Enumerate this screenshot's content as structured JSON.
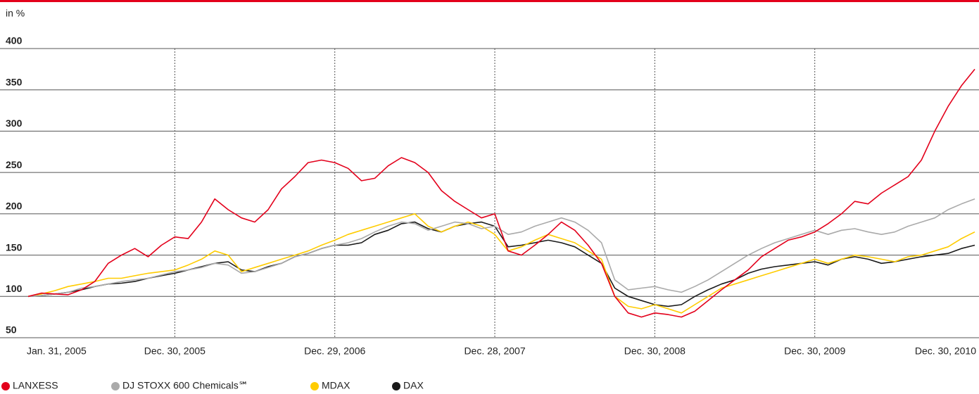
{
  "chart_data": {
    "type": "line",
    "y_label": "in %",
    "x": [
      0,
      1,
      2,
      3,
      4,
      5,
      6,
      7,
      8,
      9,
      10,
      11,
      12,
      13,
      14,
      15,
      16,
      17,
      18,
      19,
      20,
      21,
      22,
      23,
      24,
      25,
      26,
      27,
      28,
      29,
      30,
      31,
      32,
      33,
      34,
      35,
      36,
      37,
      38,
      39,
      40,
      41,
      42,
      43,
      44,
      45,
      46,
      47,
      48,
      49,
      50,
      51,
      52,
      53,
      54,
      55,
      56,
      57,
      58,
      59,
      60,
      61,
      62,
      63,
      64,
      65,
      66,
      67,
      68,
      69,
      70,
      71
    ],
    "xlim": [
      0,
      71
    ],
    "xticks": [
      {
        "value": 0,
        "label": "Jan. 31, 2005"
      },
      {
        "value": 11,
        "label": "Dec. 30, 2005"
      },
      {
        "value": 23,
        "label": "Dec. 29, 2006"
      },
      {
        "value": 35,
        "label": "Dec. 28, 2007"
      },
      {
        "value": 47,
        "label": "Dec. 30, 2008"
      },
      {
        "value": 59,
        "label": "Dec. 30, 2009"
      },
      {
        "value": 71,
        "label": "Dec. 30, 2010"
      }
    ],
    "ylim": [
      50,
      400
    ],
    "yticks": [
      50,
      100,
      150,
      200,
      250,
      300,
      350,
      400
    ],
    "grid": true,
    "series": [
      {
        "name": "LANXESS",
        "color": "#e3001b",
        "values": [
          100,
          104,
          103,
          102,
          108,
          118,
          140,
          150,
          158,
          148,
          162,
          172,
          170,
          190,
          218,
          205,
          195,
          190,
          205,
          230,
          245,
          262,
          265,
          262,
          255,
          240,
          243,
          258,
          268,
          262,
          250,
          228,
          215,
          205,
          195,
          200,
          155,
          150,
          162,
          175,
          190,
          180,
          162,
          140,
          100,
          80,
          75,
          80,
          78,
          75,
          82,
          95,
          108,
          120,
          132,
          148,
          158,
          168,
          172,
          178,
          188,
          200,
          215,
          212,
          225,
          235,
          245,
          265,
          300,
          330,
          355,
          375
        ]
      },
      {
        "name": "DJ STOXX 600 Chemicals℠",
        "color": "#aaaaaa",
        "values": [
          100,
          101,
          103,
          105,
          110,
          112,
          115,
          118,
          120,
          122,
          126,
          130,
          132,
          135,
          140,
          138,
          128,
          130,
          135,
          140,
          148,
          152,
          158,
          162,
          165,
          170,
          178,
          185,
          190,
          188,
          180,
          185,
          190,
          188,
          182,
          185,
          175,
          178,
          185,
          190,
          195,
          190,
          180,
          165,
          120,
          108,
          110,
          112,
          108,
          105,
          112,
          120,
          130,
          140,
          150,
          158,
          165,
          170,
          175,
          180,
          175,
          180,
          182,
          178,
          175,
          178,
          185,
          190,
          195,
          205,
          212,
          218
        ]
      },
      {
        "name": "MDAX",
        "color": "#ffcc00",
        "values": [
          100,
          103,
          107,
          112,
          115,
          118,
          122,
          122,
          125,
          128,
          130,
          132,
          138,
          145,
          155,
          150,
          130,
          135,
          140,
          145,
          150,
          155,
          162,
          168,
          175,
          180,
          185,
          190,
          195,
          200,
          185,
          178,
          185,
          190,
          185,
          175,
          155,
          160,
          168,
          175,
          170,
          165,
          155,
          145,
          100,
          88,
          85,
          90,
          85,
          80,
          90,
          100,
          110,
          115,
          120,
          125,
          130,
          135,
          140,
          145,
          140,
          145,
          150,
          148,
          145,
          142,
          148,
          150,
          155,
          160,
          170,
          178
        ]
      },
      {
        "name": "DAX",
        "color": "#1a1a1a",
        "values": [
          100,
          101,
          103,
          105,
          108,
          112,
          115,
          116,
          118,
          122,
          125,
          128,
          132,
          136,
          140,
          142,
          132,
          130,
          136,
          140,
          148,
          152,
          158,
          162,
          162,
          165,
          175,
          180,
          188,
          190,
          182,
          178,
          185,
          188,
          190,
          185,
          160,
          162,
          165,
          168,
          165,
          160,
          150,
          140,
          110,
          100,
          95,
          90,
          88,
          90,
          100,
          108,
          115,
          120,
          128,
          133,
          136,
          138,
          140,
          142,
          138,
          145,
          148,
          145,
          140,
          142,
          145,
          148,
          150,
          152,
          158,
          162
        ]
      }
    ]
  }
}
